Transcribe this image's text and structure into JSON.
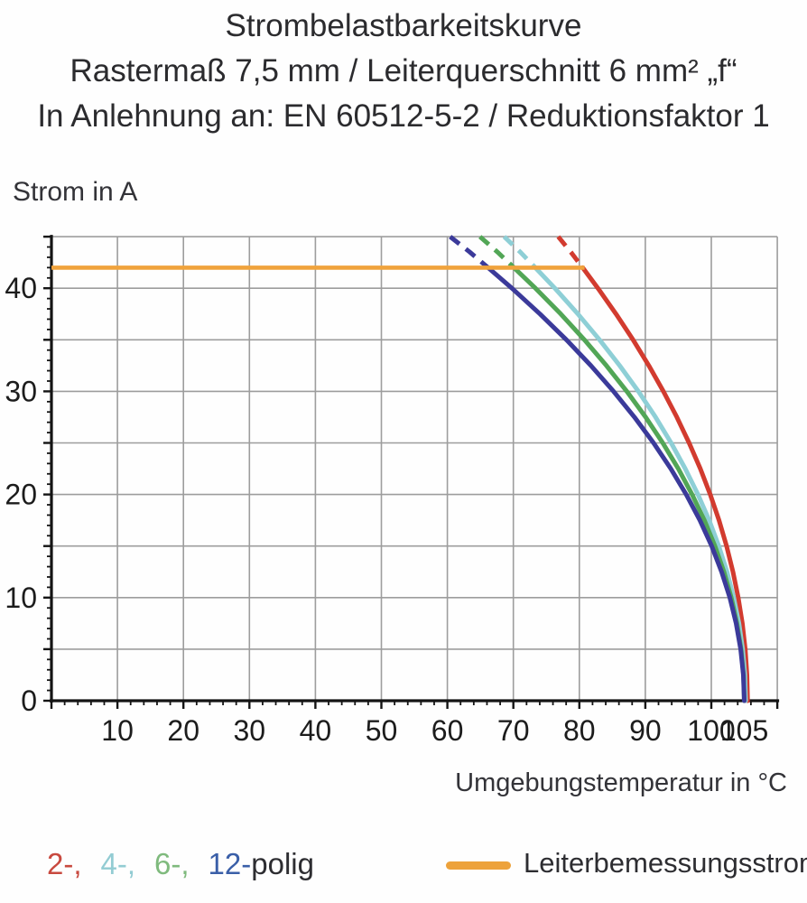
{
  "title": {
    "line1": "Strombelastbarkeitskurve",
    "line2": "Rastermaß 7,5 mm / Leiterquerschnitt 6 mm² „f“",
    "line3": "In Anlehnung an: EN 60512-5-2 / Reduktionsfaktor 1"
  },
  "axes": {
    "y_title": "Strom in A",
    "x_title": "Umgebungstemperatur in °C"
  },
  "legend": {
    "items": [
      {
        "label": "2-,",
        "color": "#c8493f"
      },
      {
        "label": "4-,",
        "color": "#93ccd3"
      },
      {
        "label": "6-,",
        "color": "#7fba7d"
      },
      {
        "label": "12-",
        "color": "#3a5fa8"
      }
    ],
    "polig_label": "polig",
    "rated_label": "Leiterbemessungsstrom",
    "rated_color": "#eda23b"
  },
  "chart_data": {
    "type": "line",
    "title": "Strombelastbarkeitskurve",
    "xlabel": "Umgebungstemperatur in °C",
    "ylabel": "Strom in A",
    "xlim": [
      0,
      110
    ],
    "ylim": [
      0,
      45
    ],
    "grid": true,
    "x_major_ticks": [
      10,
      20,
      30,
      40,
      50,
      60,
      70,
      80,
      90,
      100,
      105
    ],
    "x_tick_labels": [
      "10",
      "20",
      "30",
      "40",
      "50",
      "60",
      "70",
      "80",
      "90",
      "100",
      "105"
    ],
    "x_minor_step": 2,
    "y_major_ticks": [
      0,
      10,
      20,
      30,
      40
    ],
    "y_tick_labels": [
      "0",
      "10",
      "20",
      "30",
      "40"
    ],
    "y_minor_step": 1,
    "y_grid_step": 5,
    "x_grid_step": 10,
    "grid_color": "#9d9d9d",
    "axis_color": "#141414",
    "tick_label_color": "#1c1c1c",
    "rated_current": {
      "name": "Leiterbemessungsstrom",
      "value_A": 42,
      "color": "#f0a33c",
      "points": [
        [
          0,
          42
        ],
        [
          80.8,
          42
        ]
      ]
    },
    "series": [
      {
        "name": "2-polig",
        "color": "#d23b2f",
        "dashed_points": [
          [
            76.8,
            45
          ],
          [
            78.72,
            43.5
          ],
          [
            80.5,
            42
          ]
        ],
        "solid_points": [
          [
            80.5,
            42
          ],
          [
            82.82,
            40
          ],
          [
            85.57,
            37.5
          ],
          [
            88.14,
            35
          ],
          [
            90.53,
            32.5
          ],
          [
            92.74,
            30
          ],
          [
            94.78,
            27.5
          ],
          [
            96.64,
            25
          ],
          [
            98.33,
            22.5
          ],
          [
            99.83,
            20
          ],
          [
            101.16,
            17.5
          ],
          [
            102.31,
            15
          ],
          [
            103.29,
            12.5
          ],
          [
            104.08,
            10
          ],
          [
            104.7,
            7.5
          ],
          [
            105.15,
            5
          ],
          [
            105.41,
            2.5
          ],
          [
            105.5,
            0
          ]
        ]
      },
      {
        "name": "4-polig",
        "color": "#8ecfd6",
        "dashed_points": [
          [
            68.61,
            45
          ],
          [
            71.05,
            43.5
          ],
          [
            73.33,
            42
          ]
        ],
        "solid_points": [
          [
            73.33,
            42
          ],
          [
            76.29,
            40
          ],
          [
            79.79,
            37.5
          ],
          [
            83.07,
            35
          ],
          [
            86.12,
            32.5
          ],
          [
            88.94,
            30
          ],
          [
            91.54,
            27.5
          ],
          [
            93.91,
            25
          ],
          [
            96.05,
            22.5
          ],
          [
            97.97,
            20
          ],
          [
            99.67,
            17.5
          ],
          [
            101.13,
            15
          ],
          [
            102.38,
            12.5
          ],
          [
            103.39,
            10
          ],
          [
            104.18,
            7.5
          ],
          [
            104.75,
            5
          ],
          [
            105.09,
            2.5
          ],
          [
            105.2,
            0
          ]
        ]
      },
      {
        "name": "6-polig",
        "color": "#52a656",
        "dashed_points": [
          [
            64.94,
            45
          ],
          [
            67.6,
            43.5
          ],
          [
            70.1,
            42
          ]
        ],
        "solid_points": [
          [
            70.1,
            42
          ],
          [
            73.35,
            40
          ],
          [
            77.19,
            37.5
          ],
          [
            80.77,
            35
          ],
          [
            84.1,
            32.5
          ],
          [
            87.2,
            30
          ],
          [
            90.04,
            27.5
          ],
          [
            92.64,
            25
          ],
          [
            94.99,
            22.5
          ],
          [
            97.09,
            20
          ],
          [
            98.94,
            17.5
          ],
          [
            100.55,
            15
          ],
          [
            101.91,
            12.5
          ],
          [
            103.02,
            10
          ],
          [
            103.89,
            7.5
          ],
          [
            104.51,
            5
          ],
          [
            104.88,
            2.5
          ],
          [
            105,
            0
          ]
        ]
      },
      {
        "name": "12-polig",
        "color": "#3b3a9a",
        "dashed_points": [
          [
            60.42,
            45
          ],
          [
            63.4,
            43.5
          ],
          [
            66.17,
            42
          ]
        ],
        "solid_points": [
          [
            66.17,
            42
          ],
          [
            69.78,
            40
          ],
          [
            74.05,
            37.5
          ],
          [
            78.04,
            35
          ],
          [
            81.75,
            32.5
          ],
          [
            85.19,
            30
          ],
          [
            88.35,
            27.5
          ],
          [
            91.24,
            25
          ],
          [
            93.86,
            22.5
          ],
          [
            96.2,
            20
          ],
          [
            98.26,
            17.5
          ],
          [
            100.05,
            15
          ],
          [
            101.56,
            12.5
          ],
          [
            102.8,
            10
          ],
          [
            103.76,
            7.5
          ],
          [
            104.45,
            5
          ],
          [
            104.86,
            2.5
          ],
          [
            105,
            0
          ]
        ]
      }
    ]
  }
}
